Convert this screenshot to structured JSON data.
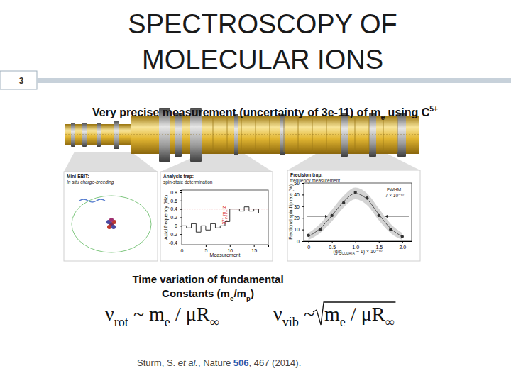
{
  "slide": {
    "number": "3",
    "title": [
      "SPECTROSCOPY OF",
      "MOLECULAR IONS"
    ],
    "subtitle": [
      "Very precise measurement (uncertainty of 3e-11) of m",
      "e",
      " using C",
      "5+"
    ],
    "panels": [
      {
        "title": "Mini-EBIT:",
        "text": "In situ charge-breeding"
      },
      {
        "title": "Analysis trap:",
        "text": "spin-state determination"
      },
      {
        "title": "Precision trap:",
        "text": "frequency measurement"
      }
    ],
    "caption": [
      "Time variation of fundamental",
      "Constants (m",
      "e",
      "/m",
      "p",
      ")"
    ],
    "formulas": [
      {
        "parts": [
          "ν",
          "rot",
          " ~ m",
          "e",
          " / μR",
          "∞"
        ]
      },
      {
        "parts": [
          "ν",
          "vib",
          " ~ "
        ],
        "radicand": [
          "m",
          "e",
          " / μR",
          "∞"
        ]
      }
    ],
    "citation": [
      "Sturm, S. ",
      "et al.",
      ", Nature ",
      "506",
      ", 467 (2014)."
    ]
  },
  "chart_data": [
    {
      "type": "line",
      "xlabel": "Measurement",
      "ylabel": "Axial frequency (Hz)",
      "x": [
        0,
        1,
        2,
        3,
        4,
        5,
        6,
        7,
        8,
        9,
        10,
        11,
        12,
        13,
        14,
        15,
        16
      ],
      "values": [
        0.0,
        -0.05,
        0.05,
        -0.15,
        0.0,
        -0.1,
        0.05,
        -0.05,
        0.0,
        0.1,
        0.4,
        0.4,
        0.35,
        0.45,
        0.35,
        0.4,
        0.3
      ],
      "xlim": [
        0,
        18
      ],
      "ylim": [
        -0.45,
        0.85
      ],
      "xticks": [
        0,
        5,
        10,
        15
      ],
      "yticks": [
        -0.4,
        -0.2,
        0,
        0.2,
        0.4,
        0.6,
        0.8
      ],
      "line_style": "steps",
      "color": "#333333",
      "annotation": "371 mHz"
    },
    {
      "type": "scatter",
      "xlabel": [
        "(g/g",
        "CODATA",
        " − 1) × 10⁻¹⁰"
      ],
      "ylabel": "Fractional spin-flip rate (%)",
      "xlim": [
        -0.1,
        2.2
      ],
      "ylim": [
        0,
        50
      ],
      "xticks": [
        0,
        0.5,
        {
          "value": 1,
          "label": "1.0"
        },
        1.5,
        {
          "value": 2,
          "label": "2.0"
        }
      ],
      "yticks": [
        0,
        10,
        20,
        30,
        40,
        50
      ],
      "annotation": [
        "FWHM:",
        "7 × 10⁻¹⁰"
      ],
      "series": [
        {
          "type": "scatter",
          "marker": "circle",
          "color": "#333333",
          "x": [
            0,
            0.25,
            0.5,
            0.75,
            1,
            1.25,
            1.5,
            1.75,
            2
          ],
          "values": [
            5,
            10,
            22,
            33,
            42,
            37,
            22,
            10,
            4
          ]
        },
        {
          "type": "line",
          "color": "#555555",
          "x": [
            0,
            0.25,
            0.5,
            0.75,
            1,
            1.25,
            1.5,
            1.75,
            2
          ],
          "values": [
            4,
            11,
            22,
            34,
            41,
            36,
            23,
            11,
            4
          ],
          "band_low": [
            1,
            7,
            17,
            29,
            36,
            31,
            18,
            7,
            1
          ],
          "band_high": [
            7,
            15,
            27,
            39,
            46,
            41,
            28,
            15,
            7
          ]
        }
      ]
    }
  ]
}
